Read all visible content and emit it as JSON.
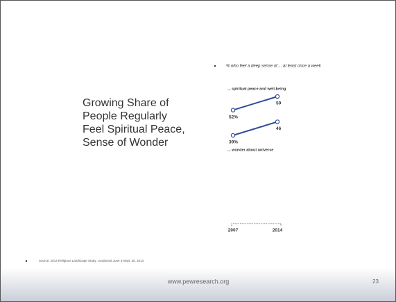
{
  "slide": {
    "title_lines": [
      "Growing Share of",
      "People Regularly",
      "Feel Spiritual Peace,",
      "Sense of Wonder"
    ],
    "source": "Source: 2014 Religious Landscape Study, conducted June 4-Sept. 30, 2014",
    "footer": "www.pewresearch.org",
    "page": "23"
  },
  "chart_data": {
    "type": "line",
    "subtitle": "% who feel a deep sense of ... at least once a week",
    "categories": [
      "2007",
      "2014"
    ],
    "series": [
      {
        "name": "... spiritual peace and well-being",
        "color": "#2f4b9c",
        "values": [
          52,
          59
        ],
        "value_labels": [
          "52%",
          "59"
        ]
      },
      {
        "name": "... wonder about universe",
        "color": "#2f4b9c",
        "values": [
          39,
          46
        ],
        "value_labels": [
          "39%",
          "46"
        ]
      }
    ]
  }
}
